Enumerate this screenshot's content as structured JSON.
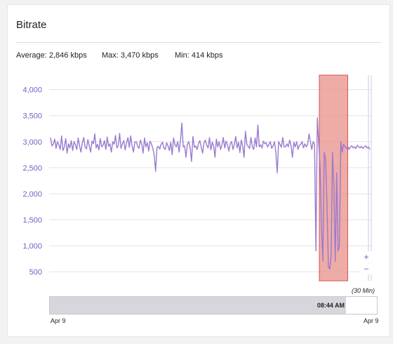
{
  "panel": {
    "title": "Bitrate",
    "stats": {
      "average": "Average: 2,846 kbps",
      "max": "Max: 3,470 kbps",
      "min": "Min: 414 kbps"
    }
  },
  "controls": {
    "zoom_in": "+",
    "zoom_out": "−",
    "range_label": "(30 Min)"
  },
  "navigator": {
    "time_label": "08:44 AM",
    "start_date": "Apr 9",
    "end_date": "Apr 9",
    "fill_fraction": 0.905
  },
  "chart_data": {
    "type": "line",
    "title": "Bitrate",
    "xlabel": "",
    "ylabel": "",
    "ylim": [
      300,
      4400
    ],
    "yticks": [
      500,
      1000,
      1500,
      2000,
      2500,
      3000,
      3500,
      4000
    ],
    "ytick_labels": [
      "500",
      "1,000",
      "1,500",
      "2,000",
      "2,500",
      "3,000",
      "3,500",
      "4,000"
    ],
    "x_start_label": "Apr 9",
    "x_end_label": "Apr 9",
    "grid": true,
    "highlight": {
      "from": 0.837,
      "to": 0.925,
      "color": "#e8908a"
    },
    "colors": {
      "line": "#9a7ad0",
      "axis_labels": "#7a5cc0",
      "grid": "#e3e3e3",
      "highlight": "#e8908a"
    },
    "series": [
      {
        "values": [
          3080,
          2920,
          2950,
          3050,
          2870,
          3000,
          2940,
          2850,
          3110,
          2830,
          2900,
          3060,
          2780,
          2960,
          2880,
          3020,
          2830,
          3000,
          2940,
          2850,
          3070,
          2920,
          2800,
          2980,
          3080,
          2900,
          2860,
          3040,
          2920,
          2800,
          3010,
          2960,
          3150,
          2880,
          2950,
          2840,
          3060,
          2900,
          2930,
          3020,
          2850,
          3090,
          2910,
          2960,
          2800,
          3000,
          2950,
          3120,
          2880,
          2920,
          3160,
          2870,
          2960,
          3020,
          2840,
          2980,
          3080,
          2890,
          3110,
          2920,
          2800,
          2990,
          3000,
          2910,
          2870,
          3030,
          2950,
          2780,
          3070,
          2900,
          2980,
          2820,
          3010,
          2960,
          2870,
          2750,
          2430,
          2890,
          2910,
          2860,
          2950,
          2990,
          2880,
          2850,
          2980,
          2920,
          2830,
          2990,
          2750,
          3070,
          2940,
          2900,
          3000,
          2800,
          3020,
          3360,
          2900,
          2920,
          2700,
          2950,
          3000,
          2880,
          2620,
          3100,
          2890,
          2920,
          2850,
          2960,
          3020,
          2900,
          2780,
          2980,
          3030,
          2930,
          2880,
          3080,
          2840,
          2990,
          2920,
          2700,
          3050,
          2900,
          3000,
          2850,
          2930,
          3080,
          2880,
          3010,
          2940,
          2820,
          2960,
          3000,
          2850,
          2950,
          3100,
          2880,
          2990,
          2790,
          3030,
          2920,
          2700,
          3200,
          2950,
          2910,
          2870,
          3080,
          2900,
          2850,
          3070,
          2900,
          3320,
          2900,
          2940,
          2880,
          3010,
          2960,
          2980,
          2900,
          2950,
          3000,
          2870,
          2920,
          3000,
          2800,
          2400,
          3000,
          2950,
          2890,
          3080,
          2900,
          2900,
          2960,
          2900,
          3030,
          2920,
          2700,
          2990,
          2900,
          3000,
          2850,
          2930,
          2950,
          3000,
          2880,
          2960,
          2900,
          2950,
          3150,
          3000,
          2850,
          3000,
          2950,
          900,
          3460,
          2980,
          2500,
          1400,
          700,
          2800,
          2650,
          1800,
          600,
          550,
          800,
          2800,
          2150,
          700,
          2400,
          900,
          1000,
          3000,
          2800,
          2950,
          2900,
          2870,
          2910,
          2850,
          2900,
          2920,
          2880,
          2900,
          2870,
          2930,
          2900,
          2880,
          2910,
          2870,
          2900,
          2920,
          2880,
          2900,
          2850
        ]
      }
    ]
  }
}
